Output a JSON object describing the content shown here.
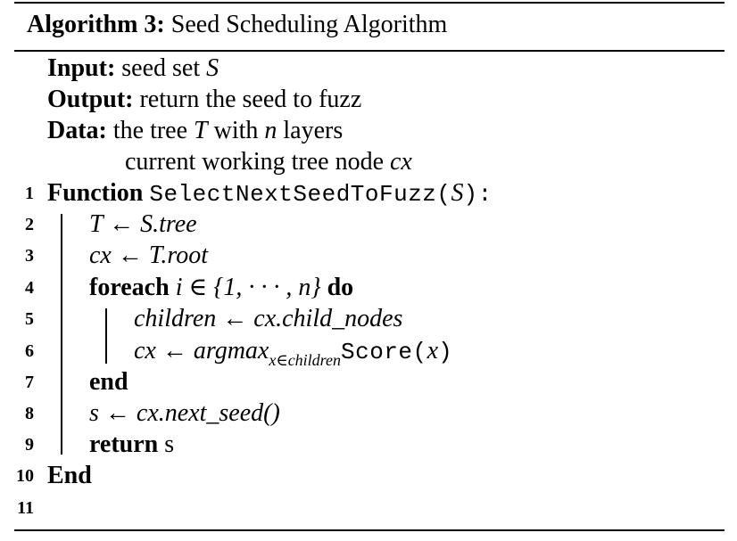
{
  "caption": {
    "label": "Algorithm 3:",
    "title": "Seed Scheduling Algorithm"
  },
  "header": {
    "input_kw": "Input:",
    "input_text": "seed set",
    "input_var": "S",
    "output_kw": "Output:",
    "output_text": "return the seed to fuzz",
    "data_kw": "Data:",
    "data_text1": "the tree",
    "data_var_T": "T",
    "data_text2": "with",
    "data_var_n": "n",
    "data_text3": "layers",
    "data_text4": "current working tree node",
    "data_var_cx": "cx"
  },
  "lines": {
    "n1": "1",
    "n2": "2",
    "n3": "3",
    "n4": "4",
    "n5": "5",
    "n6": "6",
    "n7": "7",
    "n8": "8",
    "n9": "9",
    "n10": "10",
    "n11": "11",
    "l1_kw": "Function",
    "l1_fn": "SelectNextSeedToFuzz",
    "l1_open": "(",
    "l1_arg": "S",
    "l1_close": "):",
    "l2": "T ← S.tree",
    "l3": "cx ← T.root",
    "l4_kw": "foreach",
    "l4_expr": "i ∈ {1, · · · , n}",
    "l4_do": "do",
    "l5": "children ← cx.child_nodes",
    "l6_lhs": "cx ← argmax",
    "l6_sub": "x∈children",
    "l6_fn": "Score",
    "l6_open": "(",
    "l6_arg": "x",
    "l6_close": ")",
    "l7": "end",
    "l8": "s ← cx.next_seed()",
    "l9_kw": "return",
    "l9_val": "s",
    "l10": "End"
  }
}
